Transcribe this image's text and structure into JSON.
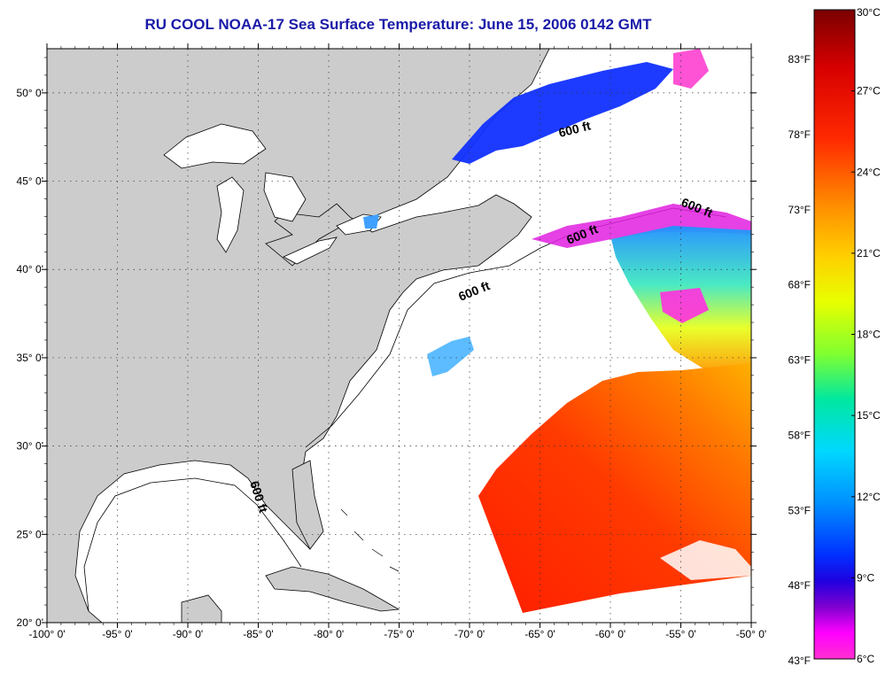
{
  "title": "RU COOL  NOAA-17  Sea Surface Temperature:  June 15, 2006 0142 GMT",
  "map": {
    "lon_range": [
      -100,
      -50
    ],
    "lat_range": [
      20,
      52.5
    ],
    "lon_ticks": [
      "-100° 0'",
      "-95° 0'",
      "-90° 0'",
      "-85° 0'",
      "-80° 0'",
      "-75° 0'",
      "-70° 0'",
      "-65° 0'",
      "-60° 0'",
      "-55° 0'",
      "-50° 0'"
    ],
    "lat_ticks": [
      "20° 0'",
      "25° 0'",
      "30° 0'",
      "35° 0'",
      "40° 0'",
      "45° 0'",
      "50° 0'"
    ],
    "grid": "dotted",
    "isobath_label": "600 ft",
    "land_color": "#cccccc",
    "water_color": "#ffffff"
  },
  "colorbar": {
    "celsius": [
      "30°C",
      "27°C",
      "24°C",
      "21°C",
      "18°C",
      "15°C",
      "12°C",
      "9°C",
      "6°C"
    ],
    "fahrenheit": [
      "83°F",
      "78°F",
      "73°F",
      "68°F",
      "63°F",
      "58°F",
      "53°F",
      "48°F",
      "43°F"
    ],
    "gradient": [
      "#8b0000",
      "#e00000",
      "#ff3000",
      "#ff7000",
      "#ffb000",
      "#ffff00",
      "#80ff40",
      "#00e0a0",
      "#00e0ff",
      "#00a0ff",
      "#0050ff",
      "#0000ff",
      "#6000c0",
      "#c000ff",
      "#ff00ff",
      "#ff40c0"
    ]
  }
}
